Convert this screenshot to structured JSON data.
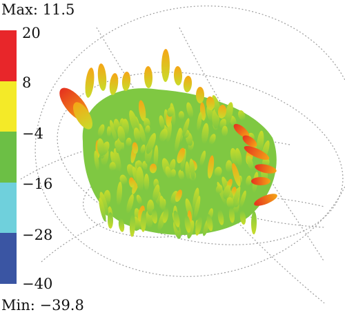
{
  "max_label": "Max: 11.5",
  "min_label": "Min: −39.8",
  "colorbar": {
    "ticks": [
      "20",
      "8",
      "−4",
      "−16",
      "−28",
      "−40"
    ],
    "colors": [
      "#e8262a",
      "#f4ea28",
      "#6cbf45",
      "#6fd0dc",
      "#3a55a3"
    ]
  },
  "pattern_colors": {
    "low": "#7fc842",
    "mid": "#c9dc2a",
    "high": "#f5a516",
    "peak": "#e5311f"
  }
}
